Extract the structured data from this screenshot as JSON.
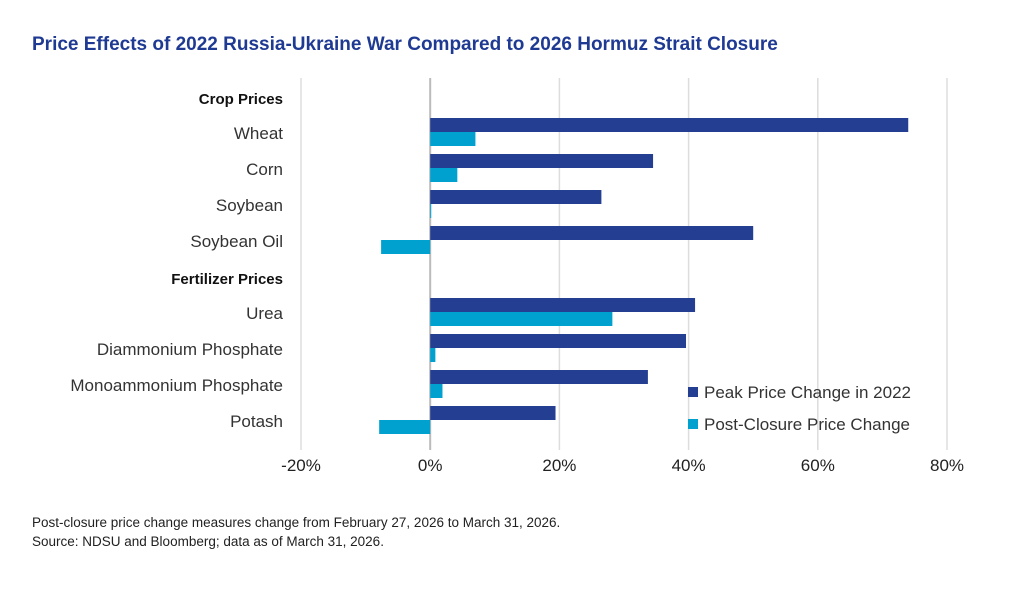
{
  "chart_data": {
    "type": "bar",
    "orientation": "horizontal",
    "title": "Price Effects of 2022 Russia-Ukraine War Compared to 2026 Hormuz Strait Closure",
    "rows": [
      {
        "label": "Crop Prices",
        "group_header": true
      },
      {
        "label": "Wheat"
      },
      {
        "label": "Corn"
      },
      {
        "label": "Soybean"
      },
      {
        "label": "Soybean Oil"
      },
      {
        "label": "Fertilizer Prices",
        "group_header": true
      },
      {
        "label": "Urea"
      },
      {
        "label": "Diammonium Phosphate"
      },
      {
        "label": "Monoammonium Phosphate"
      },
      {
        "label": "Potash"
      }
    ],
    "series": [
      {
        "name": "Peak Price Change in 2022",
        "color": "#243f91",
        "values": [
          null,
          74,
          34.5,
          26.5,
          50,
          null,
          41,
          39.6,
          33.7,
          19.4
        ]
      },
      {
        "name": "Post-Closure Price Change",
        "color": "#00a0cf",
        "values": [
          null,
          7,
          4.2,
          0.1,
          -7.6,
          null,
          28.2,
          0.8,
          1.9,
          -7.9
        ]
      }
    ],
    "xlim": [
      -20,
      80
    ],
    "xticks": [
      -20,
      0,
      20,
      40,
      60,
      80
    ],
    "xtick_labels": [
      "-20%",
      "0%",
      "20%",
      "40%",
      "60%",
      "80%"
    ],
    "grid": true,
    "legend_position": "bottom-right"
  },
  "notes": [
    "Post-closure price change measures change from February 27, 2026 to March 31, 2026.",
    "Source: NDSU and Bloomberg; data as of March 31, 2026."
  ]
}
